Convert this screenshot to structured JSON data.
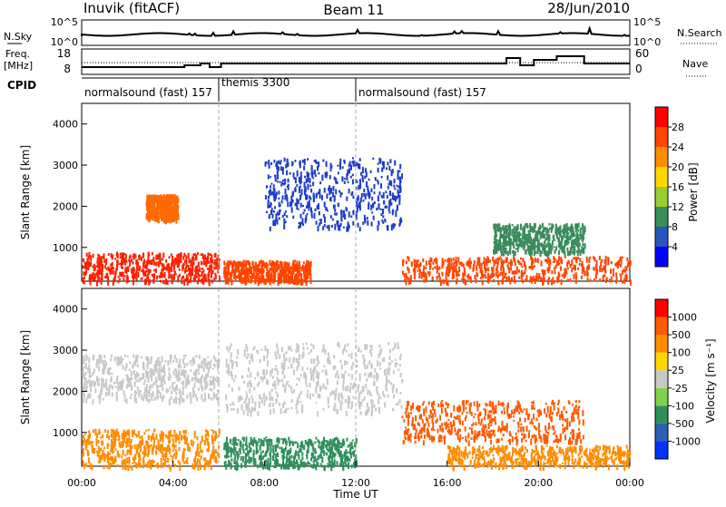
{
  "header": {
    "left_title": "Inuvik (fitACF)",
    "center_title": "Beam 11",
    "right_title": "28/Jun/2010"
  },
  "aux": {
    "nsky_label": "N.Sky",
    "nsky_ticks": [
      "10^5",
      "10^0"
    ],
    "nsearch_label": "N.Search",
    "nsearch_ticks": [
      "10^5",
      "10^0"
    ],
    "freq_label_1": "Freq.",
    "freq_label_2": "[MHz]",
    "freq_ticks": [
      "18",
      "8"
    ],
    "nave_label": "Nave",
    "nave_ticks": [
      "60",
      "0"
    ],
    "cpid_label": "CPID",
    "cpid_segments": [
      {
        "label": "normalsound (fast) 157",
        "start_hour": 0,
        "end_hour": 6
      },
      {
        "label": "themis 3300",
        "start_hour": 6,
        "end_hour": 12
      },
      {
        "label": "normalsound (fast) 157",
        "start_hour": 12,
        "end_hour": 24
      }
    ]
  },
  "chart_data": [
    {
      "type": "heatmap",
      "name": "power",
      "ylabel": "Slant Range [km]",
      "xlim_hours": [
        0,
        24
      ],
      "ylim_km": [
        180,
        4500
      ],
      "y_ticks": [
        "1000",
        "2000",
        "3000",
        "4000"
      ],
      "colorbar": {
        "label": "Power [dB]",
        "ticks": [
          "4",
          "8",
          "12",
          "16",
          "20",
          "24",
          "28"
        ],
        "colors": [
          "#0000ff",
          "#2a55bb",
          "#3a8c5a",
          "#9acd32",
          "#ffd700",
          "#ff8c00",
          "#ff4500",
          "#ff0000"
        ]
      },
      "scatter_regions": [
        {
          "h0": 0,
          "h1": 6,
          "r0": 200,
          "r1": 900,
          "color": "#ff2000"
        },
        {
          "h0": 2.8,
          "h1": 4.2,
          "r0": 1700,
          "r1": 2300,
          "color": "#ff6a00"
        },
        {
          "h0": 6.2,
          "h1": 10,
          "r0": 200,
          "r1": 700,
          "color": "#ff4500"
        },
        {
          "h0": 8,
          "h1": 14,
          "r0": 1500,
          "r1": 3200,
          "color": "#1e3cc8"
        },
        {
          "h0": 14,
          "h1": 24,
          "r0": 200,
          "r1": 800,
          "color": "#ff4500"
        },
        {
          "h0": 18,
          "h1": 22,
          "r0": 900,
          "r1": 1600,
          "color": "#3a8c5a"
        }
      ]
    },
    {
      "type": "heatmap",
      "name": "velocity",
      "ylabel": "Slant Range [km]",
      "xlabel": "Time UT",
      "xlim_hours": [
        0,
        24
      ],
      "ylim_km": [
        180,
        4500
      ],
      "x_ticks": [
        "00:00",
        "04:00",
        "08:00",
        "12:00",
        "16:00",
        "20:00",
        "00:00"
      ],
      "y_ticks": [
        "1000",
        "2000",
        "3000",
        "4000"
      ],
      "colorbar": {
        "label": "Velocity [m s⁻¹]",
        "ticks": [
          "1000",
          "500",
          "100",
          "25",
          "-25",
          "-100",
          "-500",
          "-1000"
        ],
        "colors": [
          "#0033ff",
          "#2d5fb3",
          "#2f8f5a",
          "#7fd34a",
          "#c8c8c8",
          "#ffd700",
          "#ff8c00",
          "#ff5a00",
          "#ff0000"
        ]
      },
      "scatter_regions": [
        {
          "h0": 0,
          "h1": 6,
          "r0": 200,
          "r1": 1100,
          "color": "#ff8c00"
        },
        {
          "h0": 0,
          "h1": 6,
          "r0": 1800,
          "r1": 2900,
          "color": "#c8c8c8"
        },
        {
          "h0": 6.2,
          "h1": 12,
          "r0": 200,
          "r1": 900,
          "color": "#2f8f5a"
        },
        {
          "h0": 6.2,
          "h1": 14,
          "r0": 1500,
          "r1": 3200,
          "color": "#c8c8c8"
        },
        {
          "h0": 14,
          "h1": 22,
          "r0": 800,
          "r1": 1800,
          "color": "#ff5a00"
        },
        {
          "h0": 16,
          "h1": 24,
          "r0": 200,
          "r1": 700,
          "color": "#ff8c00"
        }
      ]
    }
  ]
}
